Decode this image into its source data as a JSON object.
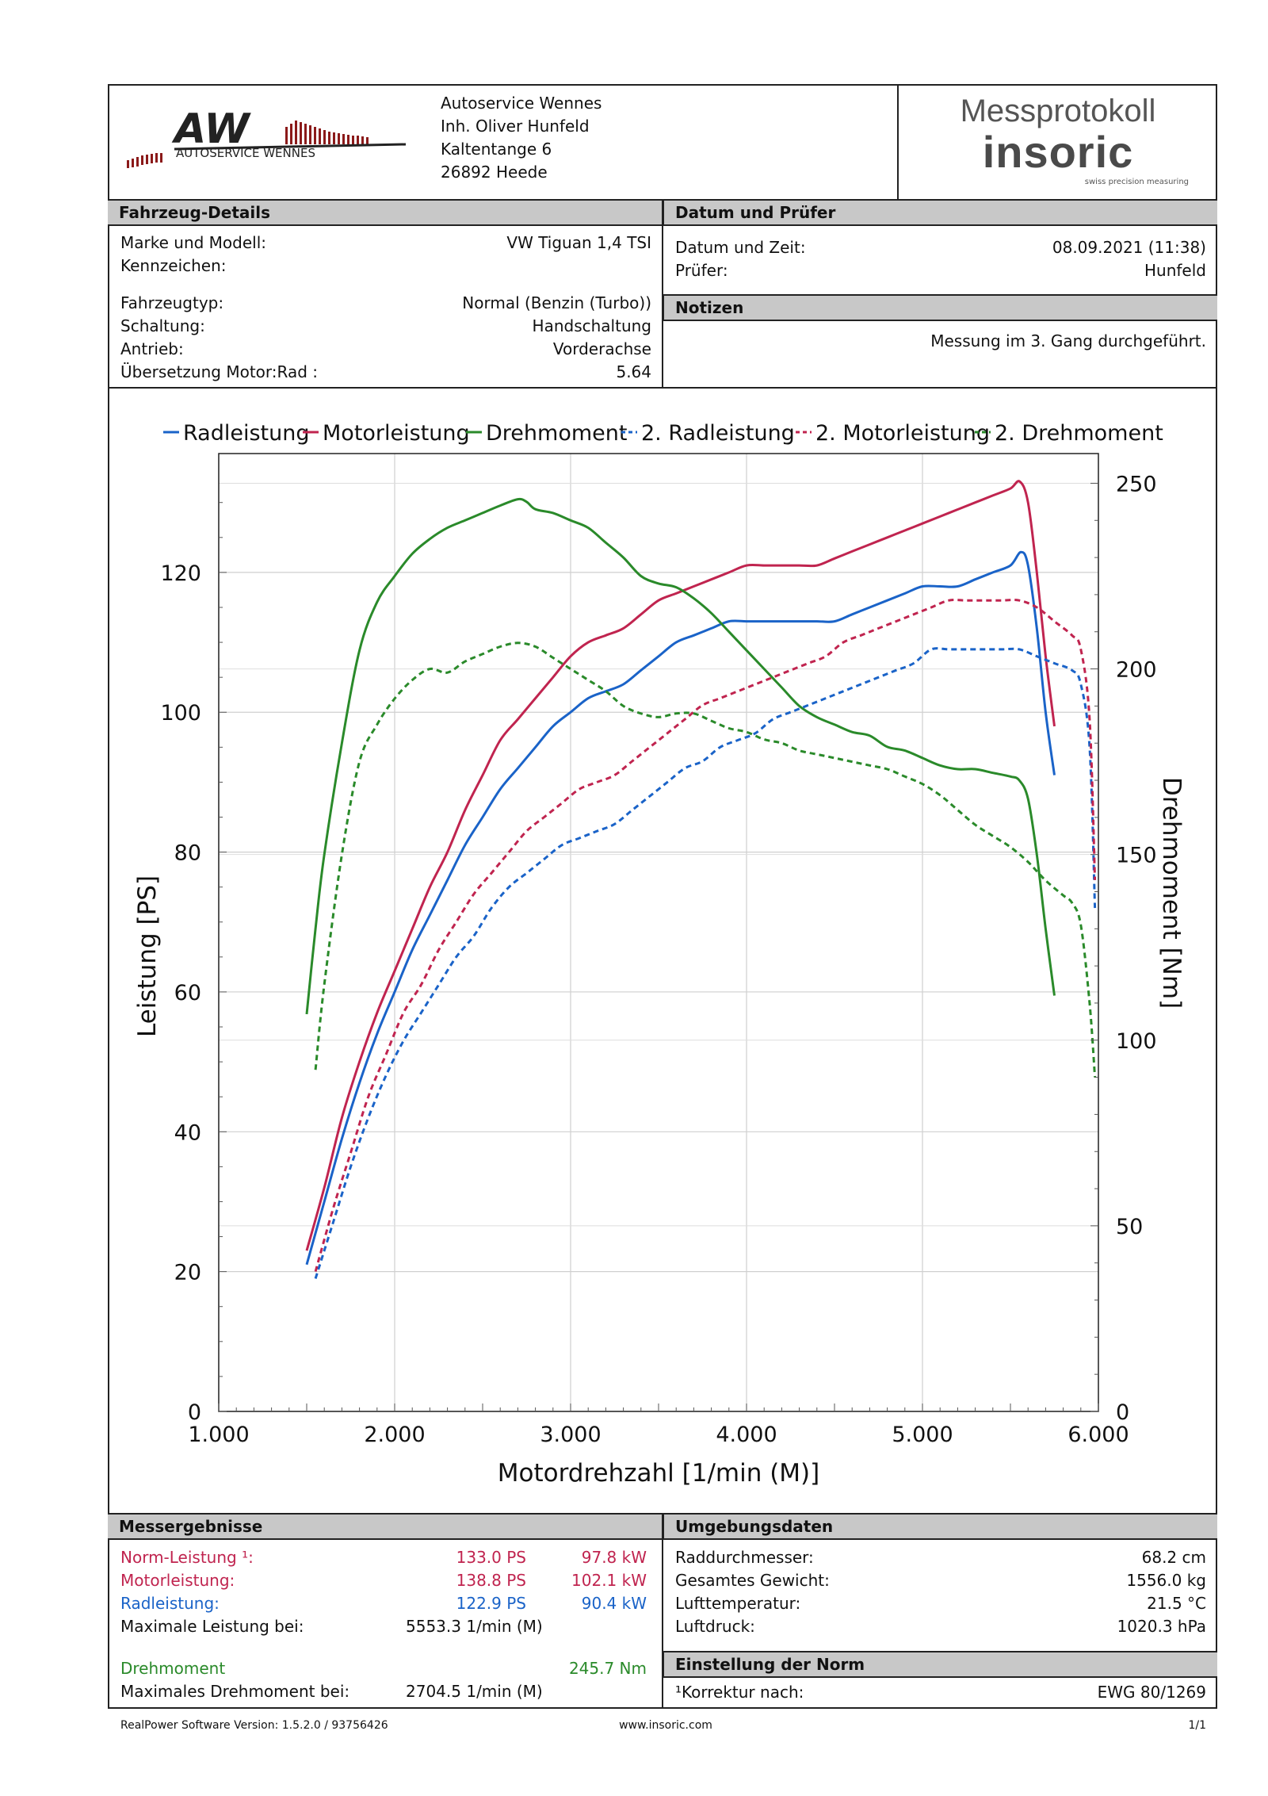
{
  "company": {
    "logo_text": "AW",
    "logo_caption": "AUTOSERVICE WENNES",
    "address_lines": [
      "Autoservice Wennes",
      "Inh. Oliver Hunfeld",
      "Kaltentange 6",
      "26892 Heede"
    ]
  },
  "brand": {
    "title": "Messprotokoll",
    "logo": "insoric",
    "tagline": "swiss precision measuring"
  },
  "vehicle": {
    "header": "Fahrzeug-Details",
    "rows": [
      {
        "label": "Marke und Modell:",
        "value": "VW Tiguan 1,4 TSI"
      },
      {
        "label": "Kennzeichen:",
        "value": ""
      },
      {
        "label": "Fahrzeugtyp:",
        "value": "Normal (Benzin (Turbo))"
      },
      {
        "label": "Schaltung:",
        "value": "Handschaltung"
      },
      {
        "label": "Antrieb:",
        "value": "Vorderachse"
      },
      {
        "label": "Übersetzung Motor:Rad :",
        "value": "5.64"
      }
    ]
  },
  "date_examiner": {
    "header": "Datum und Prüfer",
    "rows": [
      {
        "label": "Datum und Zeit:",
        "value": "08.09.2021 (11:38)"
      },
      {
        "label": "Prüfer:",
        "value": "Hunfeld"
      }
    ]
  },
  "notes": {
    "header": "Notizen",
    "text": "Messung im 3. Gang durchgeführt."
  },
  "chart_data": {
    "type": "line",
    "xlabel": "Motordrehzahl [1/min (M)]",
    "ylabel": "Leistung [PS]",
    "y2label": "Drehmoment [Nm]",
    "xlim": [
      1000,
      6000
    ],
    "ylim": [
      0,
      137
    ],
    "y2lim": [
      0,
      258
    ],
    "xticks": [
      1000,
      2000,
      3000,
      4000,
      5000,
      6000
    ],
    "xtick_labels": [
      "1.000",
      "2.000",
      "3.000",
      "4.000",
      "5.000",
      "6.000"
    ],
    "yticks": [
      0,
      20,
      40,
      60,
      80,
      100,
      120
    ],
    "y2ticks": [
      0,
      50,
      100,
      150,
      200,
      250
    ],
    "grid": true,
    "legend_position": "top",
    "series": [
      {
        "name": "Radleistung",
        "color": "#1a63c8",
        "dashed": false,
        "axis": "left",
        "x": [
          1500,
          1600,
          1700,
          1800,
          1900,
          2000,
          2100,
          2200,
          2300,
          2400,
          2500,
          2600,
          2700,
          2800,
          2900,
          3000,
          3100,
          3200,
          3300,
          3400,
          3500,
          3600,
          3700,
          3800,
          3900,
          4000,
          4100,
          4200,
          4300,
          4400,
          4500,
          4600,
          4700,
          4800,
          4900,
          5000,
          5100,
          5200,
          5300,
          5400,
          5500,
          5560,
          5600,
          5650,
          5700,
          5750
        ],
        "y": [
          21,
          30,
          39,
          47,
          54,
          60,
          66,
          71,
          76,
          81,
          85,
          89,
          92,
          95,
          98,
          100,
          102,
          103,
          104,
          106,
          108,
          110,
          111,
          112,
          113,
          113,
          113,
          113,
          113,
          113,
          113,
          114,
          115,
          116,
          117,
          118,
          118,
          118,
          119,
          120,
          121,
          122.9,
          121,
          112,
          100,
          91
        ]
      },
      {
        "name": "Motorleistung",
        "color": "#c0244f",
        "dashed": false,
        "axis": "left",
        "x": [
          1500,
          1600,
          1700,
          1800,
          1900,
          2000,
          2100,
          2200,
          2300,
          2400,
          2500,
          2600,
          2700,
          2800,
          2900,
          3000,
          3100,
          3200,
          3300,
          3400,
          3500,
          3600,
          3700,
          3800,
          3900,
          4000,
          4100,
          4200,
          4300,
          4400,
          4500,
          4600,
          4700,
          4800,
          4900,
          5000,
          5100,
          5200,
          5300,
          5400,
          5500,
          5553,
          5600,
          5650,
          5700,
          5750
        ],
        "y": [
          23,
          32,
          42,
          50,
          57,
          63,
          69,
          75,
          80,
          86,
          91,
          96,
          99,
          102,
          105,
          108,
          110,
          111,
          112,
          114,
          116,
          117,
          118,
          119,
          120,
          121,
          121,
          121,
          121,
          121,
          122,
          123,
          124,
          125,
          126,
          127,
          128,
          129,
          130,
          131,
          132,
          133,
          130,
          120,
          108,
          98
        ]
      },
      {
        "name": "Drehmoment",
        "color": "#2a8a2a",
        "dashed": false,
        "axis": "right",
        "x": [
          1500,
          1550,
          1600,
          1700,
          1800,
          1900,
          2000,
          2100,
          2200,
          2300,
          2400,
          2500,
          2600,
          2700,
          2750,
          2800,
          2900,
          3000,
          3100,
          3200,
          3300,
          3400,
          3500,
          3600,
          3700,
          3800,
          3900,
          4000,
          4100,
          4200,
          4300,
          4400,
          4500,
          4600,
          4700,
          4800,
          4900,
          5000,
          5100,
          5200,
          5300,
          5400,
          5500,
          5550,
          5600,
          5650,
          5700,
          5750
        ],
        "y": [
          107,
          130,
          150,
          180,
          205,
          218,
          225,
          231,
          235,
          238,
          240,
          242,
          244,
          245.7,
          245,
          243,
          242,
          240,
          238,
          234,
          230,
          225,
          223,
          222,
          219,
          215,
          210,
          205,
          200,
          195,
          190,
          187,
          185,
          183,
          182,
          179,
          178,
          176,
          174,
          173,
          173,
          172,
          171,
          170,
          165,
          150,
          130,
          112
        ]
      },
      {
        "name": "2. Radleistung",
        "color": "#1a63c8",
        "dashed": true,
        "axis": "left",
        "x": [
          1550,
          1650,
          1750,
          1850,
          1950,
          2050,
          2150,
          2250,
          2350,
          2450,
          2550,
          2650,
          2750,
          2850,
          2950,
          3050,
          3150,
          3250,
          3350,
          3450,
          3550,
          3650,
          3750,
          3850,
          3950,
          4050,
          4150,
          4250,
          4350,
          4450,
          4550,
          4650,
          4750,
          4850,
          4950,
          5050,
          5150,
          5250,
          5350,
          5450,
          5550,
          5650,
          5750,
          5850,
          5900,
          5950,
          5980
        ],
        "y": [
          19,
          27,
          35,
          42,
          48,
          53,
          57,
          61,
          65,
          68,
          72,
          75,
          77,
          79,
          81,
          82,
          83,
          84,
          86,
          88,
          90,
          92,
          93,
          95,
          96,
          97,
          99,
          100,
          101,
          102,
          103,
          104,
          105,
          106,
          107,
          109,
          109,
          109,
          109,
          109,
          109,
          108,
          107,
          106,
          104,
          95,
          72
        ]
      },
      {
        "name": "2. Motorleistung",
        "color": "#c0244f",
        "dashed": true,
        "axis": "left",
        "x": [
          1550,
          1650,
          1750,
          1850,
          1950,
          2050,
          2150,
          2250,
          2350,
          2450,
          2550,
          2650,
          2750,
          2850,
          2950,
          3050,
          3150,
          3250,
          3350,
          3450,
          3550,
          3650,
          3750,
          3850,
          3950,
          4050,
          4150,
          4250,
          4350,
          4450,
          4550,
          4650,
          4750,
          4850,
          4950,
          5050,
          5150,
          5250,
          5350,
          5450,
          5550,
          5650,
          5750,
          5850,
          5900,
          5950,
          5980
        ],
        "y": [
          20,
          29,
          37,
          45,
          51,
          57,
          61,
          66,
          70,
          74,
          77,
          80,
          83,
          85,
          87,
          89,
          90,
          91,
          93,
          95,
          97,
          99,
          101,
          102,
          103,
          104,
          105,
          106,
          107,
          108,
          110,
          111,
          112,
          113,
          114,
          115,
          116,
          116,
          116,
          116,
          116,
          115,
          113,
          111,
          109,
          99,
          76
        ]
      },
      {
        "name": "2. Drehmoment",
        "color": "#2a8a2a",
        "dashed": true,
        "axis": "right",
        "x": [
          1550,
          1600,
          1700,
          1800,
          1900,
          2000,
          2100,
          2200,
          2300,
          2400,
          2500,
          2600,
          2700,
          2800,
          2900,
          3000,
          3100,
          3200,
          3300,
          3400,
          3500,
          3600,
          3700,
          3800,
          3900,
          4000,
          4100,
          4200,
          4300,
          4400,
          4500,
          4600,
          4700,
          4800,
          4900,
          5000,
          5100,
          5200,
          5300,
          5400,
          5500,
          5600,
          5700,
          5800,
          5850,
          5900,
          5950,
          5980
        ],
        "y": [
          92,
          115,
          150,
          175,
          185,
          192,
          197,
          200,
          199,
          202,
          204,
          206,
          207,
          206,
          203,
          200,
          197,
          194,
          190,
          188,
          187,
          188,
          188,
          186,
          184,
          183,
          181,
          180,
          178,
          177,
          176,
          175,
          174,
          173,
          171,
          169,
          166,
          162,
          158,
          155,
          152,
          148,
          143,
          139,
          137,
          131,
          110,
          90
        ]
      }
    ]
  },
  "results": {
    "header": "Messergebnisse",
    "rows": [
      {
        "label": "Norm-Leistung ¹:",
        "ps": "133.0 PS",
        "kw": "97.8 kW",
        "color": "#c0244f"
      },
      {
        "label": "Motorleistung:",
        "ps": "138.8 PS",
        "kw": "102.1 kW",
        "color": "#c0244f"
      },
      {
        "label": "Radleistung:",
        "ps": "122.9 PS",
        "kw": "90.4 kW",
        "color": "#1a63c8"
      },
      {
        "label": "Maximale Leistung bei:",
        "ps": "5553.3 1/min (M)",
        "kw": "",
        "color": "#111111"
      }
    ],
    "torque_label": "Drehmoment",
    "torque_value": "245.7 Nm",
    "torque_color": "#2a8a2a",
    "max_torque_label": "Maximales Drehmoment bei:",
    "max_torque_value": "2704.5 1/min (M)"
  },
  "environment": {
    "header": "Umgebungsdaten",
    "rows": [
      {
        "label": "Raddurchmesser:",
        "value": "68.2 cm"
      },
      {
        "label": "Gesamtes Gewicht:",
        "value": "1556.0 kg"
      },
      {
        "label": "Lufttemperatur:",
        "value": "21.5 °C"
      },
      {
        "label": "Luftdruck:",
        "value": "1020.3 hPa"
      }
    ]
  },
  "norm": {
    "header": "Einstellung der Norm",
    "label": "¹Korrektur nach:",
    "value": "EWG 80/1269"
  },
  "footer": {
    "version": "RealPower Software Version: 1.5.2.0 / 93756426",
    "website": "www.insoric.com",
    "page": "1/1"
  }
}
